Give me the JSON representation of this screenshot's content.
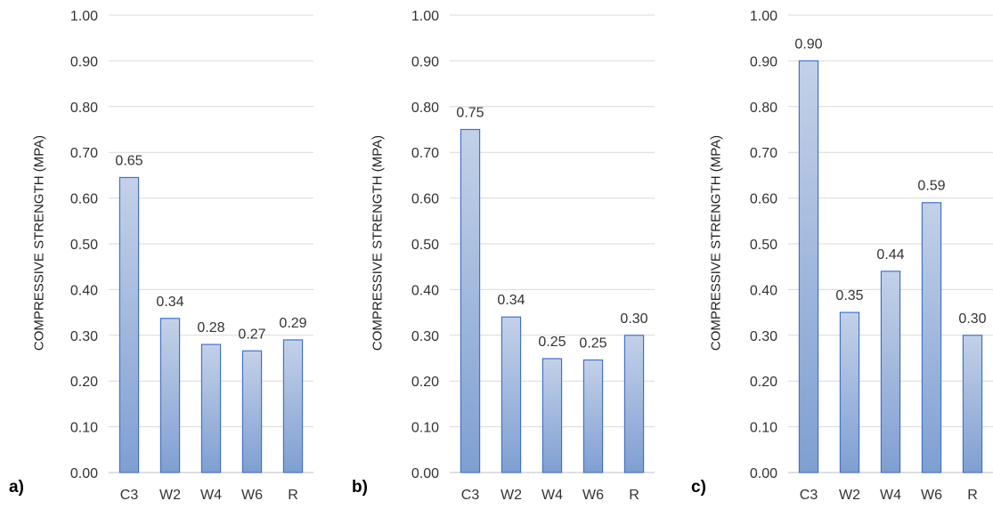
{
  "colors": {
    "bar_top": "#c3d1e8",
    "bar_bottom": "#7f9fd2",
    "bar_border": "#4472c4",
    "grid": "#d9d9d9",
    "axis": "#bfbfbf",
    "text": "#333333"
  },
  "chart_data": [
    {
      "panel_label": "a)",
      "type": "bar",
      "categories": [
        "C3",
        "W2",
        "W4",
        "W6",
        "R"
      ],
      "values": [
        0.645,
        0.337,
        0.28,
        0.266,
        0.29
      ],
      "data_labels": [
        "0.65",
        "0.34",
        "0.28",
        "0.27",
        "0.29"
      ],
      "ylabel": "COMPRESSIVE STRENGTH (MPA)",
      "ylim": [
        0,
        1
      ],
      "yticks": [
        "0.00",
        "0.10",
        "0.20",
        "0.30",
        "0.40",
        "0.50",
        "0.60",
        "0.70",
        "0.80",
        "0.90",
        "1.00"
      ],
      "grid": true
    },
    {
      "panel_label": "b)",
      "type": "bar",
      "categories": [
        "C3",
        "W2",
        "W4",
        "W6",
        "R"
      ],
      "values": [
        0.75,
        0.34,
        0.249,
        0.246,
        0.3
      ],
      "data_labels": [
        "0.75",
        "0.34",
        "0.25",
        "0.25",
        "0.30"
      ],
      "ylabel": "COMPRESSIVE STRENGTH (MPA)",
      "ylim": [
        0,
        1
      ],
      "yticks": [
        "0.00",
        "0.10",
        "0.20",
        "0.30",
        "0.40",
        "0.50",
        "0.60",
        "0.70",
        "0.80",
        "0.90",
        "1.00"
      ],
      "grid": true
    },
    {
      "panel_label": "c)",
      "type": "bar",
      "categories": [
        "C3",
        "W2",
        "W4",
        "W6",
        "R"
      ],
      "values": [
        0.9,
        0.35,
        0.44,
        0.59,
        0.3
      ],
      "data_labels": [
        "0.90",
        "0.35",
        "0.44",
        "0.59",
        "0.30"
      ],
      "ylabel": "COMPRESSIVE STRENGTH (MPA)",
      "ylim": [
        0,
        1
      ],
      "yticks": [
        "0.00",
        "0.10",
        "0.20",
        "0.30",
        "0.40",
        "0.50",
        "0.60",
        "0.70",
        "0.80",
        "0.90",
        "1.00"
      ],
      "grid": true
    }
  ]
}
